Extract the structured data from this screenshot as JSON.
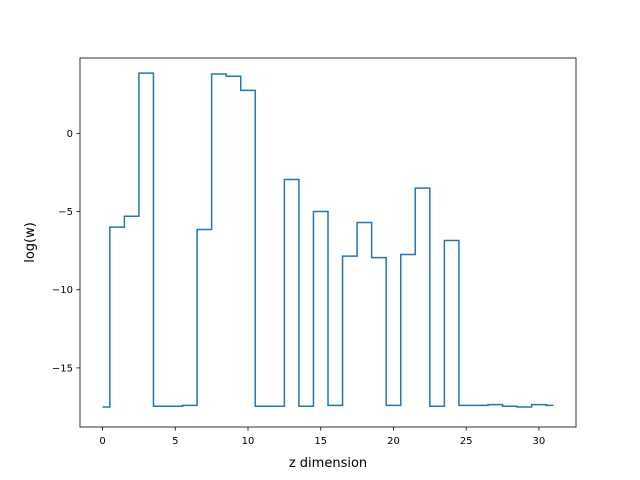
{
  "chart_data": {
    "type": "line",
    "drawstyle": "steps-mid",
    "xlabel": "z dimension",
    "ylabel": "log(w)",
    "xlim": [
      -1.55,
      32.55
    ],
    "ylim": [
      -18.78,
      4.82
    ],
    "xticks": [
      0,
      5,
      10,
      15,
      20,
      25,
      30
    ],
    "yticks": [
      -15,
      -10,
      -5,
      0
    ],
    "xtick_labels": [
      "0",
      "5",
      "10",
      "15",
      "20",
      "25",
      "30"
    ],
    "ytick_labels": [
      "−15",
      "−10",
      "−5",
      "0"
    ],
    "grid": false,
    "series": [
      {
        "color": "#1f77b4",
        "x": [
          0,
          1,
          2,
          3,
          4,
          5,
          6,
          7,
          8,
          9,
          10,
          11,
          12,
          13,
          14,
          15,
          16,
          17,
          18,
          19,
          20,
          21,
          22,
          23,
          24,
          25,
          26,
          27,
          28,
          29,
          30,
          31
        ],
        "values": [
          -17.5,
          -6.0,
          -5.3,
          3.85,
          -17.45,
          -17.45,
          -17.4,
          -6.15,
          3.8,
          3.65,
          2.75,
          -17.45,
          -17.45,
          -2.95,
          -17.45,
          -5.0,
          -17.4,
          -7.85,
          -5.7,
          -7.95,
          -17.4,
          -7.75,
          -3.5,
          -17.45,
          -6.85,
          -17.4,
          -17.4,
          -17.35,
          -17.45,
          -17.5,
          -17.35,
          -17.4
        ]
      }
    ]
  }
}
